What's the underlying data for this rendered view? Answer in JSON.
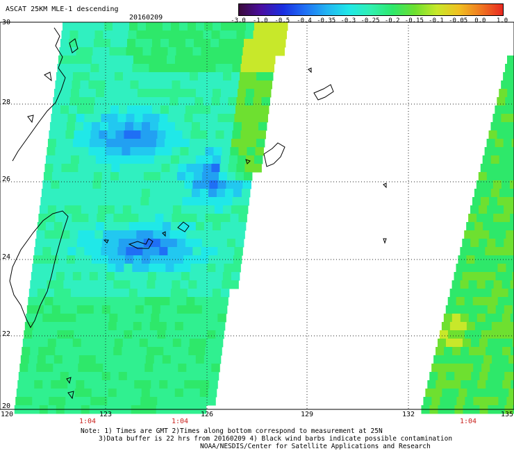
{
  "header": {
    "title": "ASCAT 25KM MLE-1 descending",
    "date": "20160209"
  },
  "colorbar": {
    "labels": [
      "-3.0",
      "-1.0",
      "-0.5",
      "-0.4",
      "-0.35",
      "-0.3",
      "-0.25",
      "-0.2",
      "-0.15",
      "-0.1",
      "-0.05",
      "0.0",
      "1.0"
    ],
    "colors": [
      "#3a0a3a",
      "#4a0ea0",
      "#1a2ee0",
      "#1f6ff5",
      "#22b4f2",
      "#20e8e8",
      "#30f0b0",
      "#2ee86a",
      "#6ee030",
      "#c8e82a",
      "#f0c020",
      "#f07820",
      "#e82820"
    ]
  },
  "map": {
    "lon_ticks": [
      "120",
      "123",
      "126",
      "129",
      "132",
      "135"
    ],
    "lat_ticks": [
      "30",
      "28",
      "26",
      "24",
      "22",
      "20"
    ],
    "lon_range": [
      120,
      135
    ],
    "lat_range": [
      20,
      30
    ],
    "grid": true,
    "pass_times": [
      "1:04",
      "1:04",
      "1:04"
    ],
    "pass_lons": [
      123,
      126,
      133.8
    ]
  },
  "notes": {
    "line1": "Note: 1) Times are GMT 2)Times along bottom correspond to measurement at 25N",
    "line2": "3)Data buffer is 22 hrs from 20160209 4) Black wind barbs indicate possible contamination",
    "line3": "NOAA/NESDIS/Center for Satellite Applications and Research"
  }
}
